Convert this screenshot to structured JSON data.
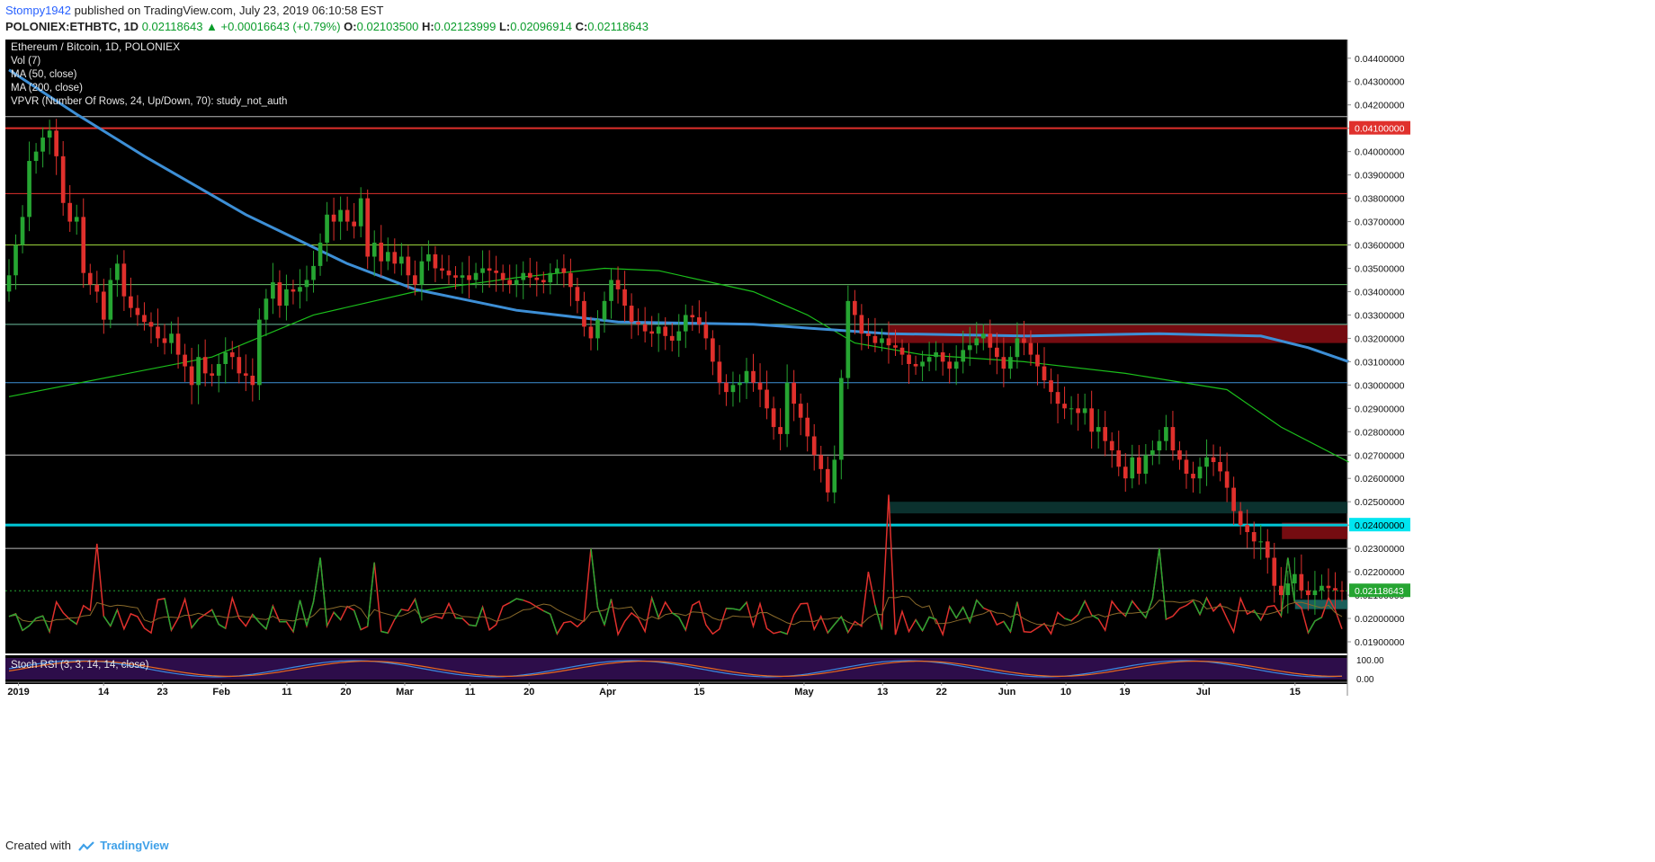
{
  "header": {
    "author": "Stompy1942",
    "published_text": "published on TradingView.com, July 23, 2019 06:10:58 EST",
    "symbol": "POLONIEX:ETHBTC, 1D",
    "last": "0.02118643",
    "change": "+0.00016643 (+0.79%)",
    "open_label": "O:",
    "open": "0.02103500",
    "high_label": "H:",
    "high": "0.02123999",
    "low_label": "L:",
    "low": "0.02096914",
    "close_label": "C:",
    "close": "0.02118643"
  },
  "legend": [
    "Ethereum / Bitcoin, 1D, POLONIEX",
    "Vol (7)",
    "MA (50, close)",
    "MA (200, close)",
    "VPVR (Number Of Rows, 24, Up/Down, 70): study_not_auth"
  ],
  "rsi_label": "Stoch RSI (3, 3, 14, 14, close)",
  "footer": {
    "created_with": "Created with",
    "brand": "TradingView"
  },
  "colors": {
    "background": "#000000",
    "up": "#26a532",
    "down": "#e0302c",
    "ma50": "#1bbf1b",
    "ma200": "#3d8fd6",
    "stoch_k": "#3c8be0",
    "stoch_d": "#e86a20",
    "rsi_band": "#2d0d4a"
  },
  "chart_data": {
    "type": "candlestick",
    "title": "Ethereum / Bitcoin, 1D, POLONIEX",
    "ylim": [
      0.0185,
      0.0448
    ],
    "y_ticks": [
      "0.04400000",
      "0.04300000",
      "0.04200000",
      "0.04100000",
      "0.04000000",
      "0.03900000",
      "0.03800000",
      "0.03700000",
      "0.03600000",
      "0.03500000",
      "0.03400000",
      "0.03300000",
      "0.03200000",
      "0.03100000",
      "0.03000000",
      "0.02900000",
      "0.02800000",
      "0.02700000",
      "0.02600000",
      "0.02500000",
      "0.02400000",
      "0.02300000",
      "0.02200000",
      "0.02100000",
      "0.02000000",
      "0.01900000"
    ],
    "x_ticks": [
      {
        "label": "2019",
        "date": "2019-01-01"
      },
      {
        "label": "14",
        "date": "2019-01-14"
      },
      {
        "label": "23",
        "date": "2019-01-23"
      },
      {
        "label": "Feb",
        "date": "2019-02-01"
      },
      {
        "label": "11",
        "date": "2019-02-11"
      },
      {
        "label": "20",
        "date": "2019-02-20"
      },
      {
        "label": "Mar",
        "date": "2019-03-01"
      },
      {
        "label": "11",
        "date": "2019-03-11"
      },
      {
        "label": "20",
        "date": "2019-03-20"
      },
      {
        "label": "Apr",
        "date": "2019-04-01"
      },
      {
        "label": "15",
        "date": "2019-04-15"
      },
      {
        "label": "May",
        "date": "2019-05-01"
      },
      {
        "label": "13",
        "date": "2019-05-13"
      },
      {
        "label": "22",
        "date": "2019-05-22"
      },
      {
        "label": "Jun",
        "date": "2019-06-01"
      },
      {
        "label": "10",
        "date": "2019-06-10"
      },
      {
        "label": "19",
        "date": "2019-06-19"
      },
      {
        "label": "Jul",
        "date": "2019-07-01"
      },
      {
        "label": "15",
        "date": "2019-07-15"
      }
    ],
    "date_range": [
      "2018-12-30",
      "2019-07-23"
    ],
    "price_labels": [
      {
        "text": "0.04100000",
        "value": 0.041,
        "color": "#e0302c",
        "text_color": "#ffffff"
      },
      {
        "text": "0.02400000",
        "value": 0.024,
        "color": "#00e5f0",
        "text_color": "#000000"
      },
      {
        "text": "0.02118643",
        "value": 0.02118643,
        "color": "#26a532",
        "text_color": "#ffffff"
      }
    ],
    "horizontal_lines": [
      {
        "value": 0.0415,
        "color": "#bbbbbb",
        "width": 1
      },
      {
        "value": 0.041,
        "color": "#e0302c",
        "width": 2
      },
      {
        "value": 0.0382,
        "color": "#e0302c",
        "width": 1
      },
      {
        "value": 0.036,
        "color": "#9ad23a",
        "width": 1
      },
      {
        "value": 0.0343,
        "color": "#6cc06c",
        "width": 1
      },
      {
        "value": 0.0326,
        "color": "#6cc0a0",
        "width": 1
      },
      {
        "value": 0.0301,
        "color": "#3d8fd6",
        "width": 1
      },
      {
        "value": 0.027,
        "color": "#bbbbbb",
        "width": 1
      },
      {
        "value": 0.024,
        "color": "#00c8d8",
        "width": 3
      },
      {
        "value": 0.023,
        "color": "#bbbbbb",
        "width": 1
      },
      {
        "value": 0.02118643,
        "color": "#26a532",
        "width": 1,
        "dash": true
      }
    ],
    "zones": [
      {
        "from_date": "2019-05-14",
        "to_date": "2019-07-23",
        "low": 0.0318,
        "high": 0.0326,
        "color": "#8a0e14"
      },
      {
        "from_date": "2019-05-14",
        "to_date": "2019-07-23",
        "low": 0.0245,
        "high": 0.025,
        "color": "#0d3a36"
      },
      {
        "from_date": "2019-07-13",
        "to_date": "2019-07-23",
        "low": 0.0234,
        "high": 0.0241,
        "color": "#8a0e14"
      },
      {
        "from_date": "2019-07-15",
        "to_date": "2019-07-23",
        "low": 0.0204,
        "high": 0.0208,
        "color": "#1e6e6a"
      }
    ],
    "closes": [
      0.0347,
      0.036,
      0.0372,
      0.0396,
      0.04,
      0.0406,
      0.0409,
      0.0398,
      0.0378,
      0.037,
      0.0372,
      0.0348,
      0.0343,
      0.034,
      0.0328,
      0.0345,
      0.0352,
      0.0338,
      0.0333,
      0.033,
      0.0327,
      0.0325,
      0.032,
      0.0318,
      0.0322,
      0.0313,
      0.0308,
      0.03,
      0.0312,
      0.0305,
      0.0304,
      0.0309,
      0.0314,
      0.0312,
      0.0305,
      0.0304,
      0.03,
      0.0328,
      0.0337,
      0.0344,
      0.0334,
      0.0341,
      0.034,
      0.0342,
      0.0345,
      0.0351,
      0.0361,
      0.0373,
      0.037,
      0.0375,
      0.037,
      0.0368,
      0.038,
      0.0355,
      0.0361,
      0.0353,
      0.0357,
      0.0352,
      0.0355,
      0.0347,
      0.0343,
      0.0353,
      0.0356,
      0.035,
      0.0349,
      0.0347,
      0.0346,
      0.0347,
      0.0345,
      0.0348,
      0.035,
      0.0349,
      0.0348,
      0.0345,
      0.0343,
      0.0345,
      0.0348,
      0.0346,
      0.0345,
      0.0344,
      0.0348,
      0.035,
      0.0348,
      0.0342,
      0.0336,
      0.0325,
      0.032,
      0.0328,
      0.0336,
      0.0345,
      0.0341,
      0.0334,
      0.0327,
      0.0326,
      0.0323,
      0.0322,
      0.0325,
      0.0321,
      0.0319,
      0.0323,
      0.033,
      0.0329,
      0.0326,
      0.032,
      0.031,
      0.0301,
      0.0297,
      0.03,
      0.0301,
      0.0306,
      0.0301,
      0.0298,
      0.029,
      0.0282,
      0.0279,
      0.0301,
      0.0292,
      0.0286,
      0.0278,
      0.027,
      0.0264,
      0.0254,
      0.0268,
      0.0303,
      0.0336,
      0.033,
      0.0322,
      0.0321,
      0.0318,
      0.032,
      0.0317,
      0.0316,
      0.0313,
      0.0309,
      0.0308,
      0.031,
      0.0312,
      0.0314,
      0.031,
      0.0307,
      0.031,
      0.0315,
      0.0317,
      0.032,
      0.0322,
      0.0316,
      0.0312,
      0.0307,
      0.0312,
      0.032,
      0.0318,
      0.0313,
      0.0308,
      0.0302,
      0.0297,
      0.0292,
      0.029,
      0.029,
      0.0288,
      0.029,
      0.028,
      0.0282,
      0.0276,
      0.0272,
      0.0265,
      0.026,
      0.0269,
      0.0262,
      0.027,
      0.0272,
      0.0276,
      0.0282,
      0.0272,
      0.0268,
      0.0262,
      0.026,
      0.0265,
      0.0269,
      0.0267,
      0.0263,
      0.0256,
      0.0246,
      0.024,
      0.0237,
      0.0233,
      0.0233,
      0.0226,
      0.0214,
      0.021,
      0.0215,
      0.0219,
      0.0212,
      0.021,
      0.0212,
      0.0214,
      0.0213,
      0.0212,
      0.02118643
    ],
    "ma50": [
      [
        0,
        0.0295
      ],
      [
        30,
        0.0312
      ],
      [
        45,
        0.033
      ],
      [
        60,
        0.034
      ],
      [
        75,
        0.0346
      ],
      [
        88,
        0.035
      ],
      [
        96,
        0.0349
      ],
      [
        110,
        0.034
      ],
      [
        118,
        0.033
      ],
      [
        125,
        0.0318
      ],
      [
        135,
        0.0313
      ],
      [
        150,
        0.031
      ],
      [
        165,
        0.0305
      ],
      [
        180,
        0.0298
      ],
      [
        188,
        0.0282
      ],
      [
        198,
        0.0267
      ]
    ],
    "ma200": [
      [
        0,
        0.0435
      ],
      [
        10,
        0.0416
      ],
      [
        20,
        0.0398
      ],
      [
        35,
        0.0373
      ],
      [
        50,
        0.0352
      ],
      [
        60,
        0.0341
      ],
      [
        75,
        0.0332
      ],
      [
        90,
        0.0327
      ],
      [
        110,
        0.0326
      ],
      [
        130,
        0.0322
      ],
      [
        150,
        0.0321
      ],
      [
        170,
        0.0322
      ],
      [
        185,
        0.0321
      ],
      [
        192,
        0.0316
      ],
      [
        198,
        0.031
      ]
    ],
    "volume_spikes": [
      {
        "date": "2019-01-13",
        "value": 0.0232
      },
      {
        "date": "2019-02-16",
        "value": 0.0226
      },
      {
        "date": "2019-02-24",
        "value": 0.0224
      },
      {
        "date": "2019-03-30",
        "value": 0.023
      },
      {
        "date": "2019-05-11",
        "value": 0.022
      },
      {
        "date": "2019-05-14",
        "value": 0.0253
      },
      {
        "date": "2019-06-25",
        "value": 0.023
      },
      {
        "date": "2019-07-15",
        "value": 0.0226
      }
    ],
    "stoch_rsi": {
      "levels": [
        "100.00",
        "0.00"
      ]
    }
  }
}
